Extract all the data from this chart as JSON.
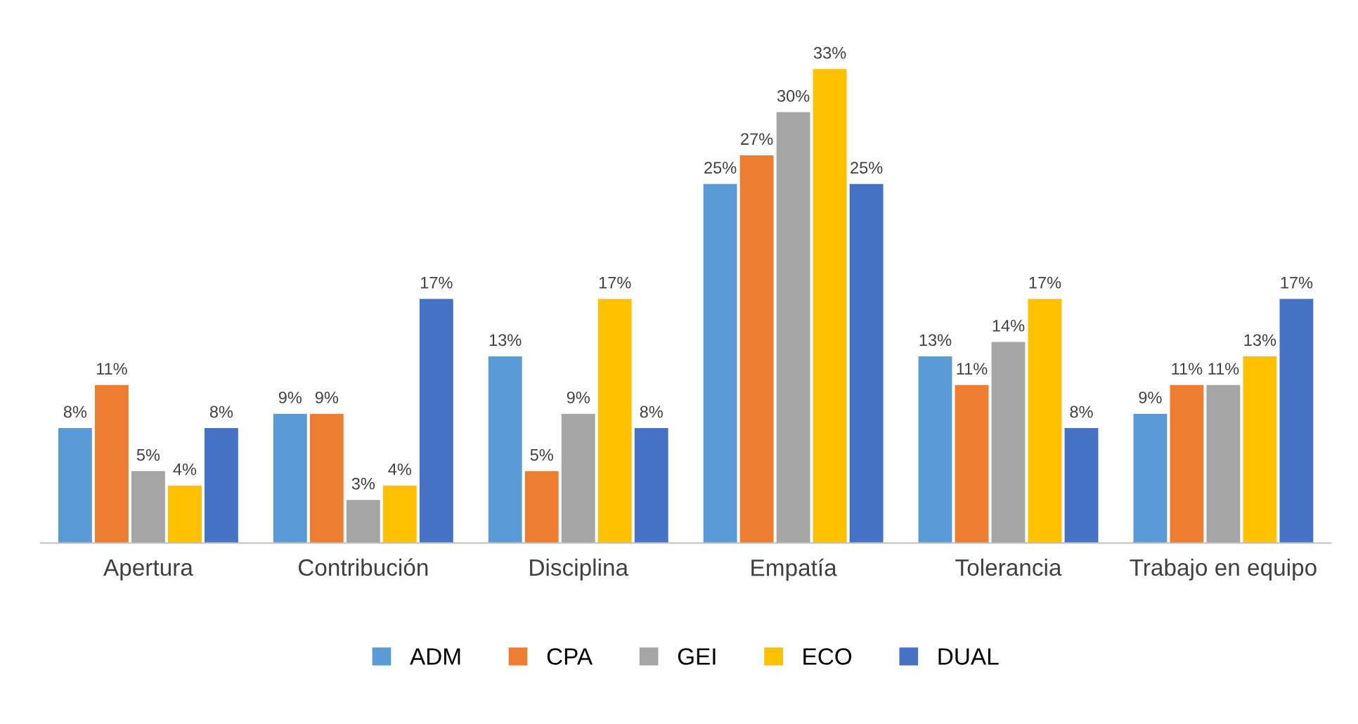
{
  "chart_data": {
    "type": "bar",
    "categories": [
      "Apertura",
      "Contribución",
      "Disciplina",
      "Empatía",
      "Tolerancia",
      "Trabajo en equipo"
    ],
    "series": [
      {
        "name": "ADM",
        "color": "#5b9bd5",
        "values": [
          8,
          9,
          13,
          25,
          13,
          9
        ],
        "value_labels": [
          "8%",
          "9%",
          "13%",
          "25%",
          "13%",
          "9%"
        ]
      },
      {
        "name": "CPA",
        "color": "#ed7d31",
        "values": [
          11,
          9,
          5,
          27,
          11,
          11
        ],
        "value_labels": [
          "11%",
          "9%",
          "5%",
          "27%",
          "11%",
          "11%"
        ]
      },
      {
        "name": "GEI",
        "color": "#a5a5a5",
        "values": [
          5,
          3,
          9,
          30,
          14,
          11
        ],
        "value_labels": [
          "5%",
          "3%",
          "9%",
          "30%",
          "14%",
          "11%"
        ]
      },
      {
        "name": "ECO",
        "color": "#ffc000",
        "values": [
          4,
          4,
          17,
          33,
          17,
          13
        ],
        "value_labels": [
          "4%",
          "4%",
          "17%",
          "33%",
          "17%",
          "13%"
        ]
      },
      {
        "name": "DUAL",
        "color": "#4472c4",
        "values": [
          8,
          17,
          8,
          25,
          8,
          17
        ],
        "value_labels": [
          "8%",
          "17%",
          "8%",
          "25%",
          "8%",
          "17%"
        ]
      }
    ],
    "legend": "bottom",
    "grid": false
  }
}
